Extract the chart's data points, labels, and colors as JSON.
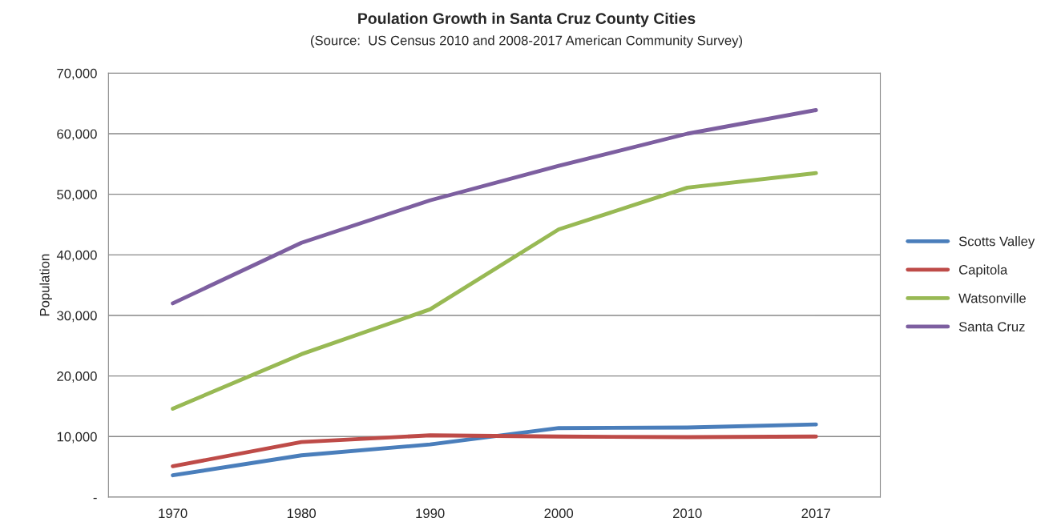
{
  "chart_data": {
    "type": "line",
    "title": "Poulation Growth in Santa Cruz County Cities",
    "subtitle": "(Source:  US Census 2010 and 2008-2017 American Community Survey)",
    "ylabel": "Population",
    "categories": [
      "1970",
      "1980",
      "1990",
      "2000",
      "2010",
      "2017"
    ],
    "series": [
      {
        "name": "Scotts Valley",
        "color": "#4a7ebb",
        "values": [
          3600,
          6900,
          8700,
          11400,
          11500,
          12000
        ]
      },
      {
        "name": "Capitola",
        "color": "#be4b48",
        "values": [
          5100,
          9100,
          10200,
          10000,
          9900,
          10000
        ]
      },
      {
        "name": "Watsonville",
        "color": "#98b954",
        "values": [
          14600,
          23600,
          31000,
          44200,
          51100,
          53500
        ]
      },
      {
        "name": "Santa Cruz",
        "color": "#7d5fa0",
        "values": [
          32000,
          42000,
          49000,
          54700,
          60000,
          63900
        ]
      }
    ],
    "ylim": [
      0,
      70000
    ],
    "yticks": [
      {
        "value": 0,
        "label": "-"
      },
      {
        "value": 10000,
        "label": "10,000"
      },
      {
        "value": 20000,
        "label": "20,000"
      },
      {
        "value": 30000,
        "label": "30,000"
      },
      {
        "value": 40000,
        "label": "40,000"
      },
      {
        "value": 50000,
        "label": "50,000"
      },
      {
        "value": 60000,
        "label": "60,000"
      },
      {
        "value": 70000,
        "label": "70,000"
      }
    ],
    "grid": "y",
    "legend": "right",
    "marker": "none",
    "line_style": "solid"
  }
}
